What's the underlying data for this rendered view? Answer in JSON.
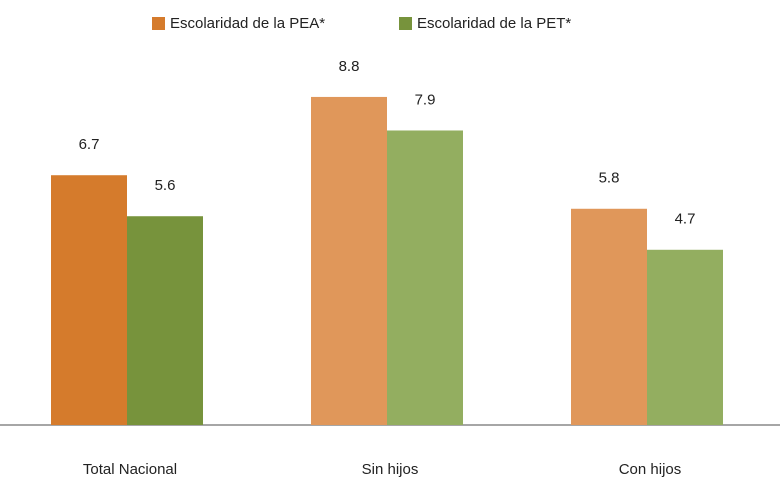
{
  "chart_data": {
    "type": "bar",
    "categories": [
      "Total Nacional",
      "Sin hijos",
      "Con hijos"
    ],
    "series": [
      {
        "name": "Escolaridad de la PEA*",
        "color": "#d57b2c",
        "colors": [
          "#d57b2c",
          "#e0975a",
          "#e0975a"
        ],
        "values": [
          6.7,
          8.8,
          5.8
        ]
      },
      {
        "name": "Escolaridad de la PET*",
        "color": "#77933c",
        "colors": [
          "#77933c",
          "#93ae60",
          "#93ae60"
        ],
        "values": [
          5.6,
          7.9,
          4.7
        ]
      }
    ],
    "ylim": [
      0,
      11.4
    ],
    "legend": "top"
  }
}
